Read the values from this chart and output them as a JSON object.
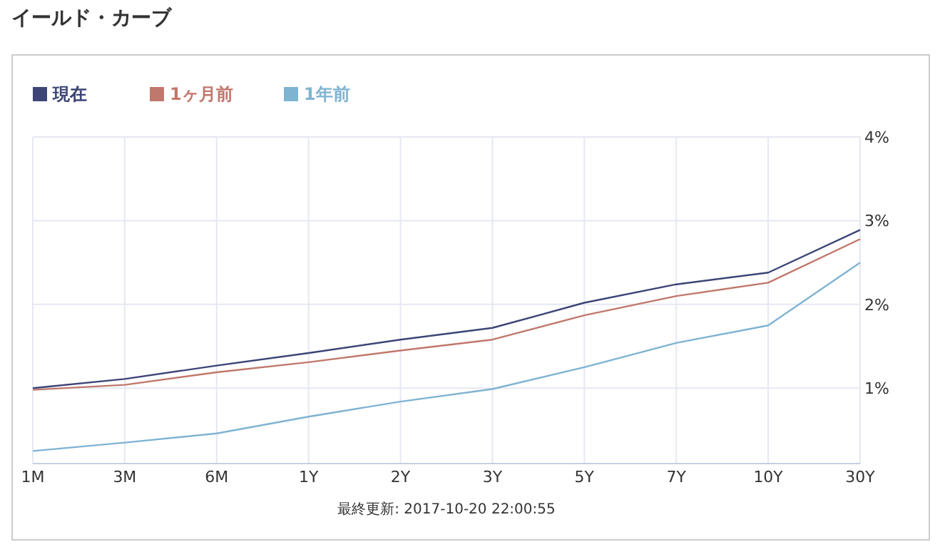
{
  "chart_data": {
    "type": "line",
    "title": "イールド・カーブ",
    "categories": [
      "1M",
      "3M",
      "6M",
      "1Y",
      "2Y",
      "3Y",
      "5Y",
      "7Y",
      "10Y",
      "30Y"
    ],
    "series": [
      {
        "name": "現在",
        "color": "#3d4577",
        "values": [
          1.0,
          1.11,
          1.27,
          1.42,
          1.58,
          1.72,
          2.02,
          2.24,
          2.38,
          2.89
        ]
      },
      {
        "name": "1ヶ月前",
        "color": "#c0786c",
        "values": [
          0.98,
          1.04,
          1.19,
          1.31,
          1.45,
          1.58,
          1.87,
          2.1,
          2.26,
          2.78
        ]
      },
      {
        "name": "1年前",
        "color": "#7fb3d2",
        "values": [
          0.25,
          0.35,
          0.46,
          0.66,
          0.84,
          0.99,
          1.25,
          1.54,
          1.75,
          2.5
        ]
      }
    ],
    "ylim": [
      0.1,
      4
    ],
    "yticks": [
      {
        "value": 1,
        "label": "1%"
      },
      {
        "value": 2,
        "label": "2%"
      },
      {
        "value": 3,
        "label": "3%"
      },
      {
        "value": 4,
        "label": "4%"
      }
    ],
    "grid": true,
    "legend": "top left",
    "annotations": [
      "最終更新: 2017-10-20 22:00:55"
    ]
  }
}
